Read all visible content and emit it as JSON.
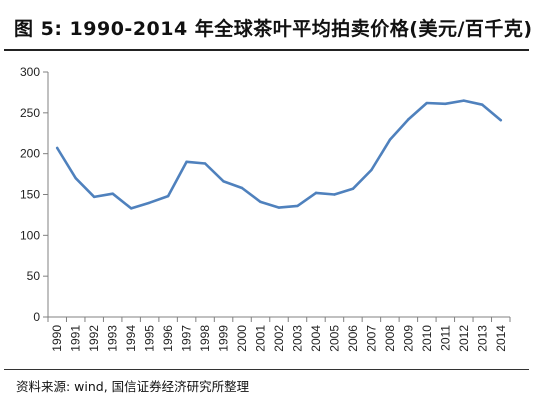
{
  "figure": {
    "title": "图 5:  1990-2014 年全球茶叶平均拍卖价格(美元/百千克)",
    "source": "资料来源:  wind,  国信证券经济研究所整理"
  },
  "colors": {
    "line": "#4F81BD",
    "axis": "#808080",
    "text": "#222222"
  },
  "chart_data": {
    "type": "line",
    "title": "1990-2014 年全球茶叶平均拍卖价格(美元/百千克)",
    "xlabel": "",
    "ylabel": "",
    "ylim": [
      0,
      300
    ],
    "yticks": [
      0,
      50,
      100,
      150,
      200,
      250,
      300
    ],
    "grid": false,
    "legend": "none",
    "categories": [
      "1990",
      "1991",
      "1992",
      "1993",
      "1994",
      "1995",
      "1996",
      "1997",
      "1998",
      "1999",
      "2000",
      "2001",
      "2002",
      "2003",
      "2004",
      "2005",
      "2006",
      "2007",
      "2008",
      "2009",
      "2010",
      "2011",
      "2012",
      "2013",
      "2014"
    ],
    "series": [
      {
        "values": [
          207,
          170,
          147,
          151,
          133,
          140,
          148,
          190,
          188,
          166,
          158,
          141,
          134,
          136,
          152,
          150,
          157,
          180,
          217,
          242,
          262,
          261,
          265,
          260,
          241
        ]
      }
    ]
  }
}
